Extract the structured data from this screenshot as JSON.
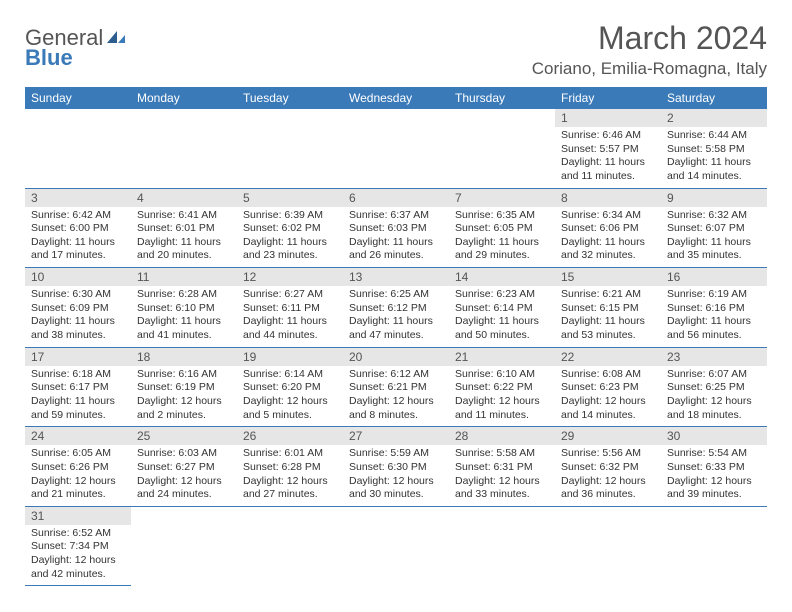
{
  "logo": {
    "text1": "General",
    "text2": "Blue"
  },
  "title": "March 2024",
  "location": "Coriano, Emilia-Romagna, Italy",
  "day_headers": [
    "Sunday",
    "Monday",
    "Tuesday",
    "Wednesday",
    "Thursday",
    "Friday",
    "Saturday"
  ],
  "colors": {
    "header_bg": "#3a7ab8",
    "header_fg": "#ffffff",
    "daynum_bg": "#e6e6e6",
    "text": "#555555",
    "rule": "#3a7ab8"
  },
  "layout": {
    "first_weekday_index": 5,
    "days_in_month": 31
  },
  "days": {
    "1": {
      "sunrise": "6:46 AM",
      "sunset": "5:57 PM",
      "daylight": "11 hours and 11 minutes."
    },
    "2": {
      "sunrise": "6:44 AM",
      "sunset": "5:58 PM",
      "daylight": "11 hours and 14 minutes."
    },
    "3": {
      "sunrise": "6:42 AM",
      "sunset": "6:00 PM",
      "daylight": "11 hours and 17 minutes."
    },
    "4": {
      "sunrise": "6:41 AM",
      "sunset": "6:01 PM",
      "daylight": "11 hours and 20 minutes."
    },
    "5": {
      "sunrise": "6:39 AM",
      "sunset": "6:02 PM",
      "daylight": "11 hours and 23 minutes."
    },
    "6": {
      "sunrise": "6:37 AM",
      "sunset": "6:03 PM",
      "daylight": "11 hours and 26 minutes."
    },
    "7": {
      "sunrise": "6:35 AM",
      "sunset": "6:05 PM",
      "daylight": "11 hours and 29 minutes."
    },
    "8": {
      "sunrise": "6:34 AM",
      "sunset": "6:06 PM",
      "daylight": "11 hours and 32 minutes."
    },
    "9": {
      "sunrise": "6:32 AM",
      "sunset": "6:07 PM",
      "daylight": "11 hours and 35 minutes."
    },
    "10": {
      "sunrise": "6:30 AM",
      "sunset": "6:09 PM",
      "daylight": "11 hours and 38 minutes."
    },
    "11": {
      "sunrise": "6:28 AM",
      "sunset": "6:10 PM",
      "daylight": "11 hours and 41 minutes."
    },
    "12": {
      "sunrise": "6:27 AM",
      "sunset": "6:11 PM",
      "daylight": "11 hours and 44 minutes."
    },
    "13": {
      "sunrise": "6:25 AM",
      "sunset": "6:12 PM",
      "daylight": "11 hours and 47 minutes."
    },
    "14": {
      "sunrise": "6:23 AM",
      "sunset": "6:14 PM",
      "daylight": "11 hours and 50 minutes."
    },
    "15": {
      "sunrise": "6:21 AM",
      "sunset": "6:15 PM",
      "daylight": "11 hours and 53 minutes."
    },
    "16": {
      "sunrise": "6:19 AM",
      "sunset": "6:16 PM",
      "daylight": "11 hours and 56 minutes."
    },
    "17": {
      "sunrise": "6:18 AM",
      "sunset": "6:17 PM",
      "daylight": "11 hours and 59 minutes."
    },
    "18": {
      "sunrise": "6:16 AM",
      "sunset": "6:19 PM",
      "daylight": "12 hours and 2 minutes."
    },
    "19": {
      "sunrise": "6:14 AM",
      "sunset": "6:20 PM",
      "daylight": "12 hours and 5 minutes."
    },
    "20": {
      "sunrise": "6:12 AM",
      "sunset": "6:21 PM",
      "daylight": "12 hours and 8 minutes."
    },
    "21": {
      "sunrise": "6:10 AM",
      "sunset": "6:22 PM",
      "daylight": "12 hours and 11 minutes."
    },
    "22": {
      "sunrise": "6:08 AM",
      "sunset": "6:23 PM",
      "daylight": "12 hours and 14 minutes."
    },
    "23": {
      "sunrise": "6:07 AM",
      "sunset": "6:25 PM",
      "daylight": "12 hours and 18 minutes."
    },
    "24": {
      "sunrise": "6:05 AM",
      "sunset": "6:26 PM",
      "daylight": "12 hours and 21 minutes."
    },
    "25": {
      "sunrise": "6:03 AM",
      "sunset": "6:27 PM",
      "daylight": "12 hours and 24 minutes."
    },
    "26": {
      "sunrise": "6:01 AM",
      "sunset": "6:28 PM",
      "daylight": "12 hours and 27 minutes."
    },
    "27": {
      "sunrise": "5:59 AM",
      "sunset": "6:30 PM",
      "daylight": "12 hours and 30 minutes."
    },
    "28": {
      "sunrise": "5:58 AM",
      "sunset": "6:31 PM",
      "daylight": "12 hours and 33 minutes."
    },
    "29": {
      "sunrise": "5:56 AM",
      "sunset": "6:32 PM",
      "daylight": "12 hours and 36 minutes."
    },
    "30": {
      "sunrise": "5:54 AM",
      "sunset": "6:33 PM",
      "daylight": "12 hours and 39 minutes."
    },
    "31": {
      "sunrise": "6:52 AM",
      "sunset": "7:34 PM",
      "daylight": "12 hours and 42 minutes."
    }
  },
  "labels": {
    "sunrise": "Sunrise:",
    "sunset": "Sunset:",
    "daylight": "Daylight:"
  }
}
